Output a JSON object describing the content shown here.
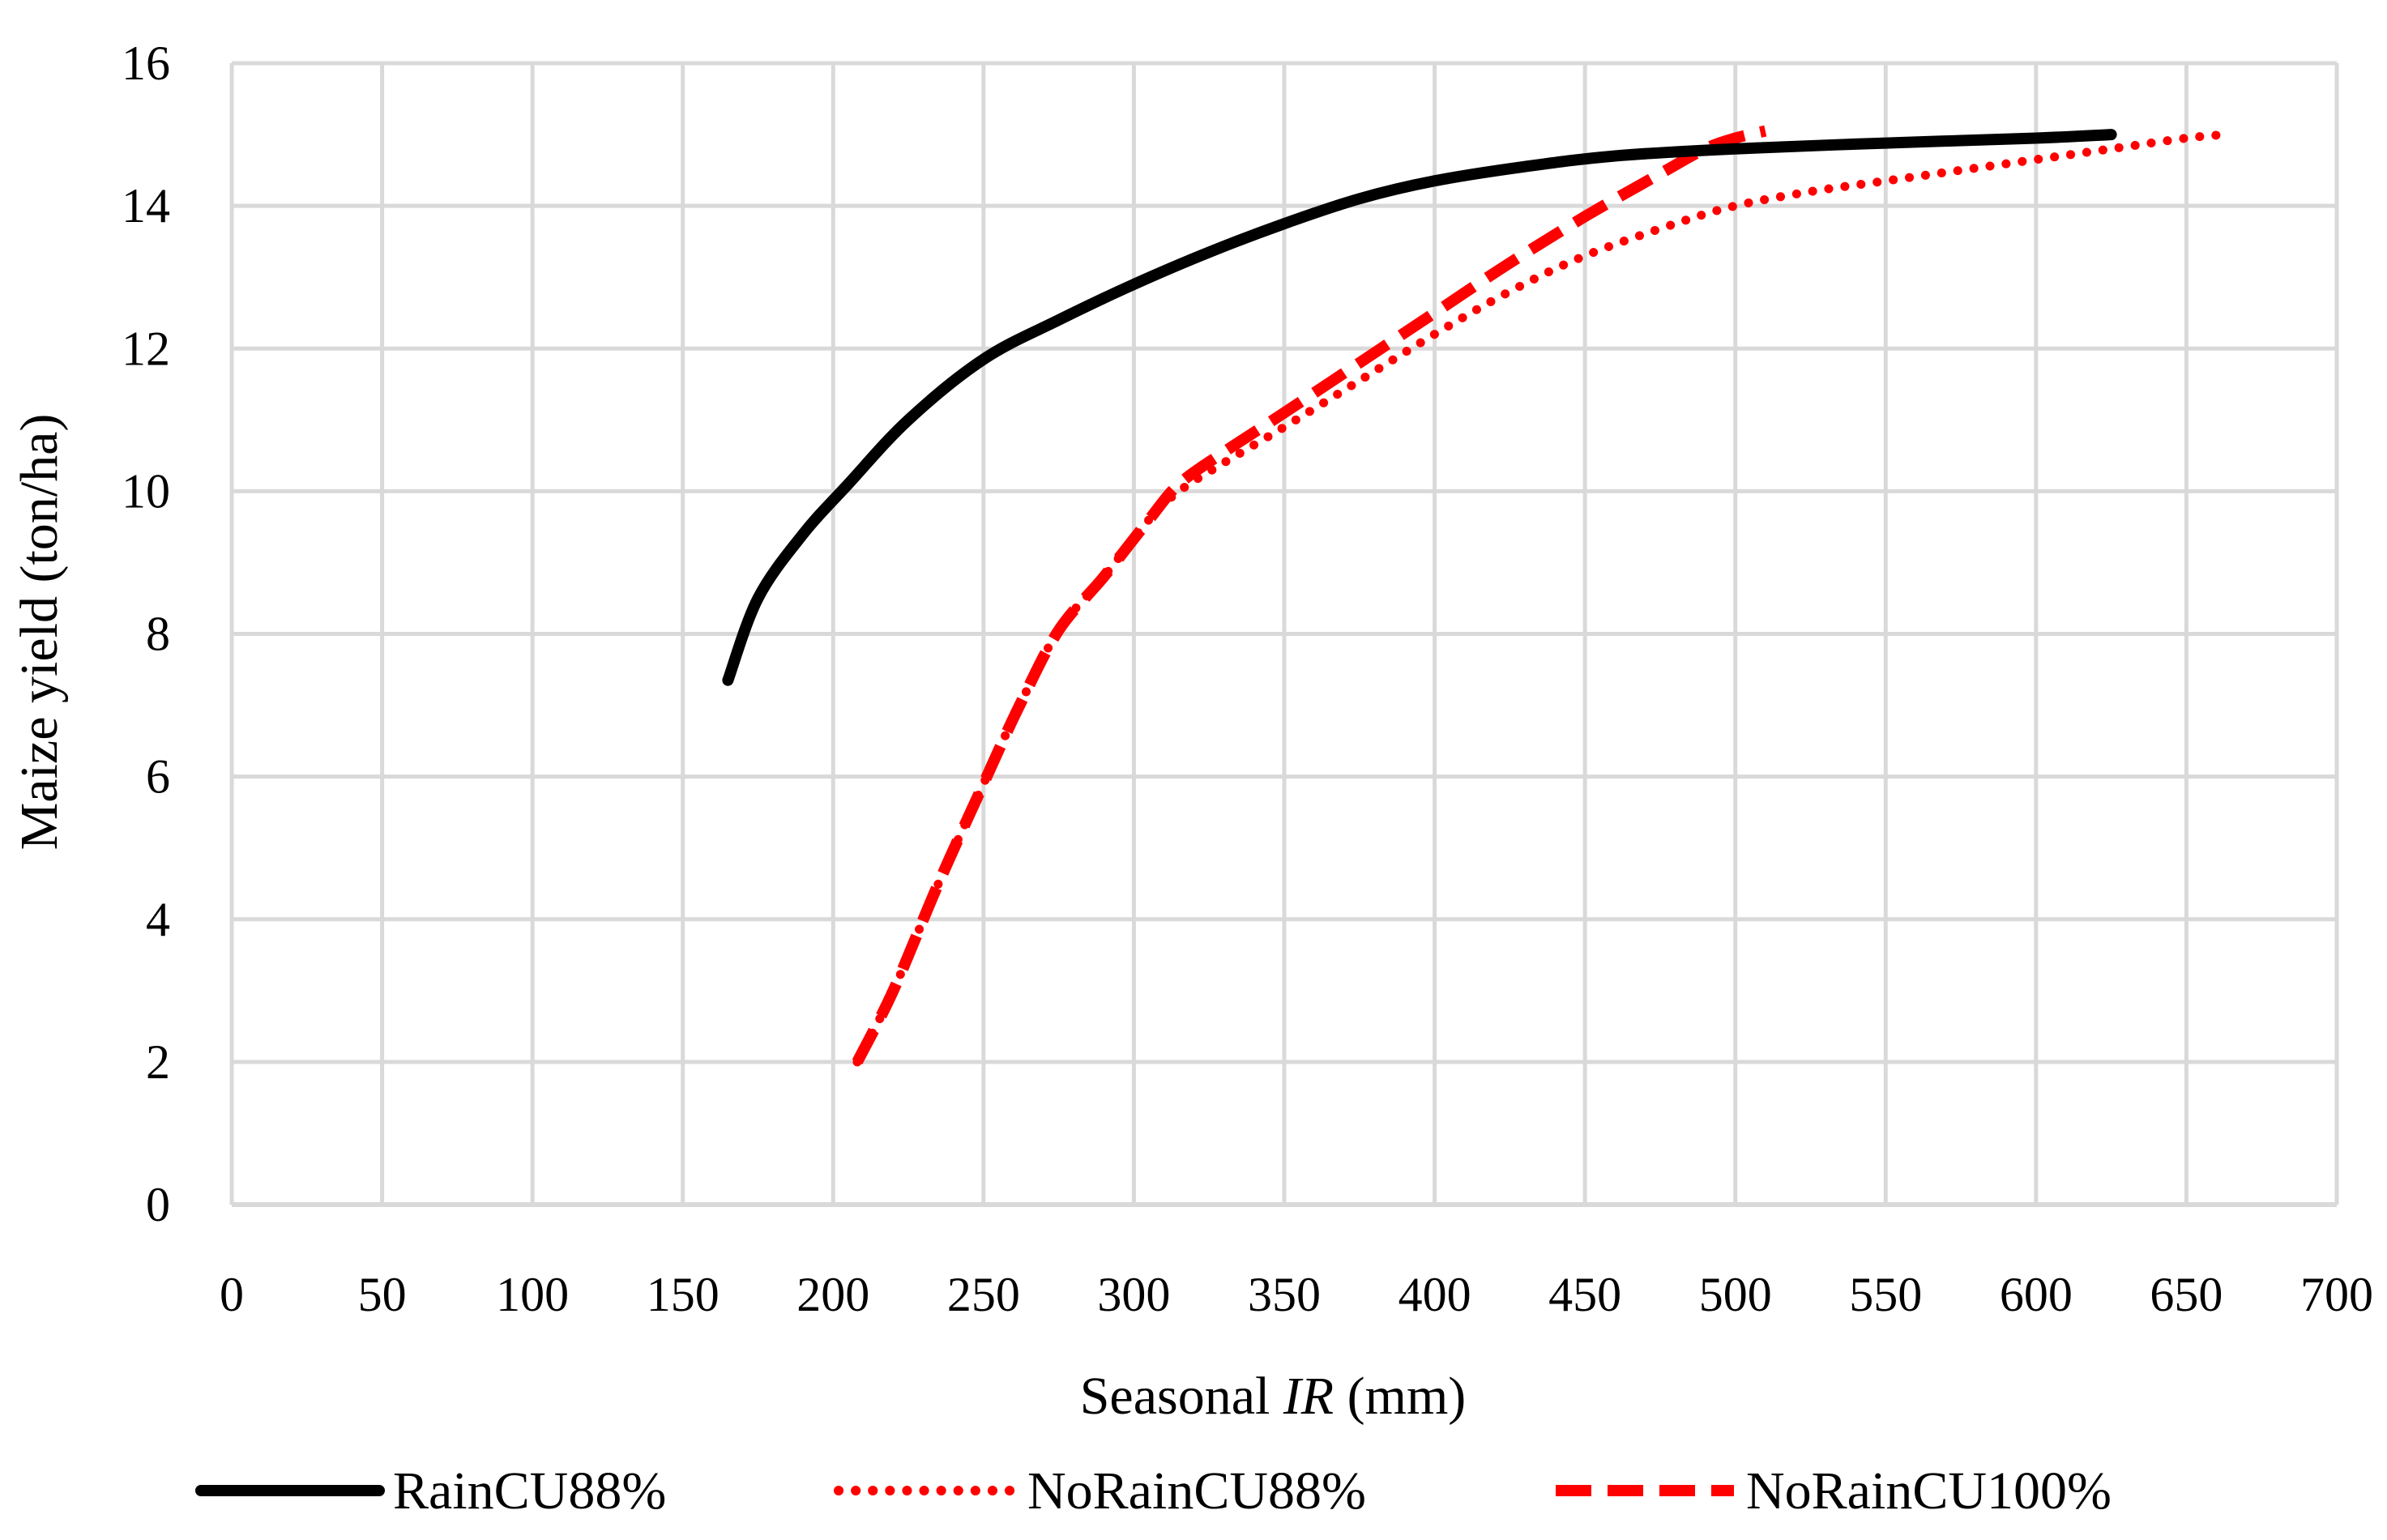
{
  "chart_data": {
    "type": "line",
    "xlabel_parts": [
      "Seasonal ",
      "IR",
      " (mm)"
    ],
    "ylabel": "Maize yield (ton/ha)",
    "xlim": [
      0,
      700
    ],
    "ylim": [
      0,
      16
    ],
    "x_ticks": [
      "0",
      "50",
      "100",
      "150",
      "200",
      "250",
      "300",
      "350",
      "400",
      "450",
      "500",
      "550",
      "600",
      "650",
      "700"
    ],
    "y_ticks": [
      "0",
      "2",
      "4",
      "6",
      "8",
      "10",
      "12",
      "14",
      "16"
    ],
    "grid": true,
    "legend_position": "bottom",
    "series": [
      {
        "name": "RainCU88%",
        "color": "#000000",
        "style": "solid",
        "x": [
          165,
          175,
          190,
          205,
          225,
          250,
          275,
          300,
          325,
          350,
          375,
          400,
          430,
          460,
          500,
          550,
          600,
          625
        ],
        "y": [
          7.35,
          8.5,
          9.4,
          10.1,
          11.0,
          11.85,
          12.4,
          12.9,
          13.35,
          13.75,
          14.1,
          14.35,
          14.55,
          14.7,
          14.8,
          14.88,
          14.95,
          15.0
        ]
      },
      {
        "name": "NoRainCU88%",
        "color": "#ff0000",
        "style": "dotted",
        "x": [
          208,
          220,
          235,
          250,
          262,
          275,
          290,
          305,
          315,
          330,
          350,
          375,
          400,
          425,
          450,
          480,
          500,
          525,
          550,
          575,
          600,
          625,
          650,
          663
        ],
        "y": [
          2.0,
          3.0,
          4.5,
          5.9,
          7.0,
          8.05,
          8.8,
          9.6,
          10.0,
          10.4,
          10.9,
          11.55,
          12.2,
          12.8,
          13.3,
          13.75,
          14.0,
          14.2,
          14.35,
          14.5,
          14.65,
          14.8,
          14.95,
          15.0
        ]
      },
      {
        "name": "NoRainCU100%",
        "color": "#ff0000",
        "style": "dashed",
        "x": [
          208,
          220,
          235,
          250,
          262,
          275,
          290,
          305,
          315,
          330,
          350,
          375,
          400,
          425,
          450,
          475,
          490,
          500,
          510
        ],
        "y": [
          2.0,
          3.0,
          4.5,
          5.9,
          7.0,
          8.05,
          8.8,
          9.6,
          10.1,
          10.55,
          11.1,
          11.8,
          12.5,
          13.2,
          13.85,
          14.45,
          14.8,
          14.95,
          15.05
        ]
      }
    ]
  }
}
